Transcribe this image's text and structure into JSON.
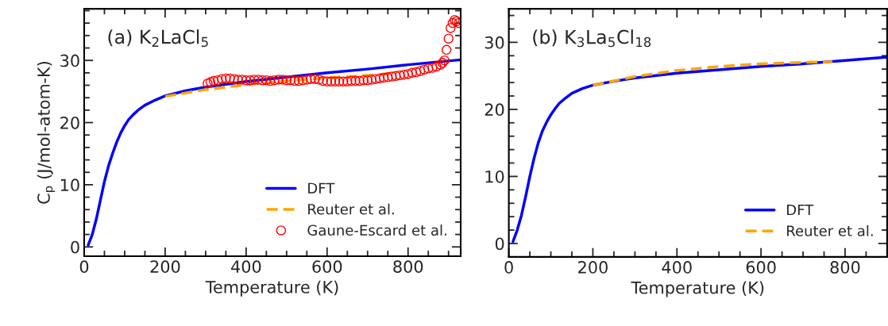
{
  "chart_data": [
    {
      "type": "line",
      "title": "(a) K$_{2}$LaCl$_{5}$",
      "xlabel": "Temperature (K)",
      "ylabel": "C$_{p}$ (J/mol-atom-K)",
      "xlim": [
        0,
        930
      ],
      "ylim": [
        -1.5,
        38.3
      ],
      "xticks": [
        0,
        200,
        400,
        600,
        800
      ],
      "yticks": [
        0,
        10,
        20,
        30
      ],
      "legend": "bottom right",
      "grid": false,
      "series": [
        {
          "name": "DFT",
          "line_style": "solid",
          "marker": "none",
          "color": "#0000ff",
          "x": [
            10,
            20,
            30,
            40,
            50,
            60,
            70,
            80,
            90,
            100,
            110,
            120,
            135,
            150,
            175,
            200,
            250,
            300,
            400,
            500,
            600,
            700,
            800,
            930
          ],
          "values": [
            0.3,
            2,
            4.5,
            7.5,
            10.5,
            13,
            15,
            16.8,
            18.3,
            19.5,
            20.5,
            21.2,
            22.1,
            22.8,
            23.6,
            24.3,
            25.1,
            25.7,
            26.6,
            27.3,
            28,
            28.6,
            29.3,
            30.1
          ]
        },
        {
          "name": "Reuter et al.",
          "line_style": "dashed",
          "marker": "none",
          "color": "#ffa500",
          "x": [
            200,
            300,
            400,
            500,
            600,
            700,
            760
          ],
          "values": [
            24.2,
            25.3,
            26.1,
            26.7,
            27.2,
            27.6,
            27.9
          ]
        },
        {
          "name": "Gaune-Escard et al.",
          "type": "scatter",
          "marker": "circle",
          "color": "#ff0000",
          "x": [
            305,
            312,
            320,
            330,
            340,
            350,
            360,
            370,
            380,
            390,
            400,
            410,
            420,
            430,
            440,
            450,
            460,
            470,
            480,
            490,
            500,
            510,
            520,
            530,
            540,
            550,
            560,
            570,
            580,
            590,
            600,
            610,
            620,
            630,
            640,
            650,
            660,
            670,
            680,
            690,
            700,
            710,
            720,
            730,
            740,
            750,
            760,
            770,
            780,
            790,
            800,
            810,
            820,
            830,
            840,
            850,
            860,
            870,
            880,
            885,
            890,
            895,
            900,
            905,
            910,
            915,
            920,
            925
          ],
          "values": [
            26.3,
            26.5,
            26.7,
            26.8,
            27.0,
            27.1,
            27.1,
            27.0,
            26.9,
            26.9,
            26.8,
            26.8,
            26.9,
            26.9,
            26.8,
            26.8,
            26.7,
            26.8,
            26.9,
            26.9,
            26.8,
            26.8,
            26.7,
            26.7,
            26.8,
            26.9,
            27.0,
            27.0,
            26.9,
            26.7,
            26.6,
            26.6,
            26.6,
            26.6,
            26.6,
            26.6,
            26.7,
            26.7,
            26.7,
            26.8,
            26.8,
            26.9,
            27.0,
            27.1,
            27.2,
            27.3,
            27.4,
            27.5,
            27.6,
            27.7,
            27.8,
            28.0,
            28.1,
            28.3,
            28.5,
            28.7,
            28.8,
            29.0,
            29.3,
            29.6,
            30.0,
            31.7,
            33.5,
            35.2,
            36.0,
            36.5,
            36.3,
            36.0
          ]
        }
      ]
    },
    {
      "type": "line",
      "title": "(b) K$_{3}$La$_{5}$Cl$_{18}$",
      "xlabel": "Temperature (K)",
      "xlim": [
        0,
        900
      ],
      "ylim": [
        -2,
        35
      ],
      "xticks": [
        0,
        200,
        400,
        600,
        800
      ],
      "yticks": [
        0,
        10,
        20,
        30
      ],
      "legend": "bottom right",
      "grid": false,
      "series": [
        {
          "name": "DFT",
          "line_style": "solid",
          "marker": "none",
          "color": "#0000ff",
          "x": [
            10,
            20,
            30,
            40,
            50,
            60,
            70,
            80,
            90,
            100,
            110,
            120,
            135,
            150,
            175,
            200,
            250,
            300,
            400,
            500,
            600,
            700,
            800,
            900
          ],
          "values": [
            0.3,
            2,
            4.2,
            7,
            10,
            12.7,
            15,
            16.8,
            18.1,
            19.2,
            20.1,
            20.9,
            21.7,
            22.4,
            23.1,
            23.6,
            24.2,
            24.7,
            25.4,
            25.9,
            26.4,
            26.8,
            27.3,
            27.8
          ]
        },
        {
          "name": "Reuter et al.",
          "line_style": "dashed",
          "marker": "none",
          "color": "#ffa500",
          "x": [
            200,
            300,
            400,
            500,
            600,
            700,
            770
          ],
          "values": [
            23.6,
            24.9,
            25.8,
            26.4,
            26.8,
            27.0,
            27.1
          ]
        }
      ]
    }
  ]
}
